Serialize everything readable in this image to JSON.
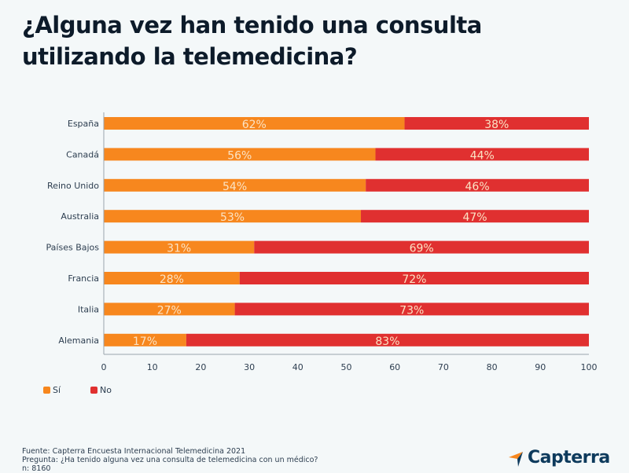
{
  "chart_data": {
    "type": "bar",
    "orientation": "horizontal",
    "stacked": true,
    "title": "¿Alguna vez han tenido una consulta utilizando la telemedicina?",
    "categories": [
      "España",
      "Canadá",
      "Reino Unido",
      "Australia",
      "Países Bajos",
      "Francia",
      "Italia",
      "Alemania"
    ],
    "series": [
      {
        "name": "Sí",
        "color": "#f7871e",
        "values": [
          62,
          56,
          54,
          53,
          31,
          28,
          27,
          17
        ]
      },
      {
        "name": "No",
        "color": "#e03030",
        "values": [
          38,
          44,
          46,
          47,
          69,
          72,
          73,
          83
        ]
      }
    ],
    "value_suffix": "%",
    "xlabel": "",
    "ylabel": "",
    "xlim": [
      0,
      100
    ],
    "xticks": [
      0,
      10,
      20,
      30,
      40,
      50,
      60,
      70,
      80,
      90,
      100
    ],
    "grid": false,
    "legend": {
      "position": "bottom-left",
      "entries": [
        "Sí",
        "No"
      ]
    }
  },
  "footer": {
    "source": "Fuente: Capterra Encuesta Internacional Telemedicina 2021",
    "question": "Pregunta: ¿Ha tenido alguna vez una consulta de telemedicina con un médico?",
    "sample": "n: 8160"
  },
  "brand": {
    "name": "Capterra",
    "colors": {
      "orange": "#f7871e",
      "blue": "#0d3a5c"
    }
  }
}
